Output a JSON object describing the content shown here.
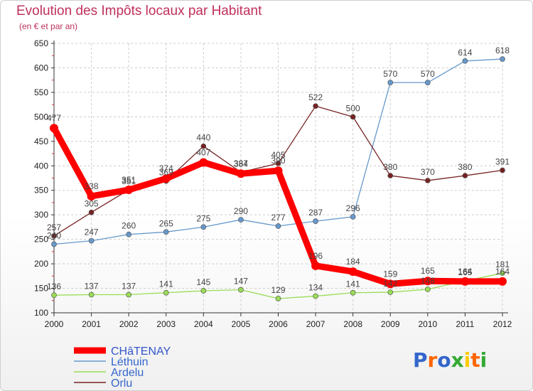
{
  "header": {
    "title": "Evolution des Impôts locaux par Habitant",
    "subtitle": "(en € et par an)"
  },
  "brand": {
    "logo": "Proxiti"
  },
  "chart_data": {
    "type": "line",
    "title": "Evolution des Impôts locaux par Habitant",
    "subtitle": "(en € et par an)",
    "xlabel": "",
    "ylabel": "",
    "x": [
      "2000",
      "2001",
      "2002",
      "2003",
      "2004",
      "2005",
      "2006",
      "2007",
      "2008",
      "2009",
      "2010",
      "2011",
      "2012"
    ],
    "ylim": [
      100,
      650
    ],
    "yticks": [
      100,
      150,
      200,
      250,
      300,
      350,
      400,
      450,
      500,
      550,
      600,
      650
    ],
    "grid": true,
    "legend_position": "bottom-left",
    "series": [
      {
        "name": "CHâTENAY",
        "color": "#ff0000",
        "values": [
          477,
          338,
          351,
          374,
          407,
          384,
          390,
          196,
          184,
          159,
          165,
          164,
          164
        ]
      },
      {
        "name": "Léthuin",
        "color": "#6699cc",
        "values": [
          240,
          247,
          260,
          265,
          275,
          290,
          277,
          287,
          296,
          570,
          570,
          614,
          618
        ]
      },
      {
        "name": "Ardelu",
        "color": "#99dd55",
        "values": [
          136,
          137,
          137,
          141,
          145,
          147,
          129,
          134,
          141,
          142,
          148,
          165,
          181
        ]
      },
      {
        "name": "Orlu",
        "color": "#772222",
        "values": [
          257,
          305,
          351,
          369,
          440,
          387,
          405,
          522,
          500,
          380,
          370,
          380,
          391
        ]
      }
    ]
  }
}
